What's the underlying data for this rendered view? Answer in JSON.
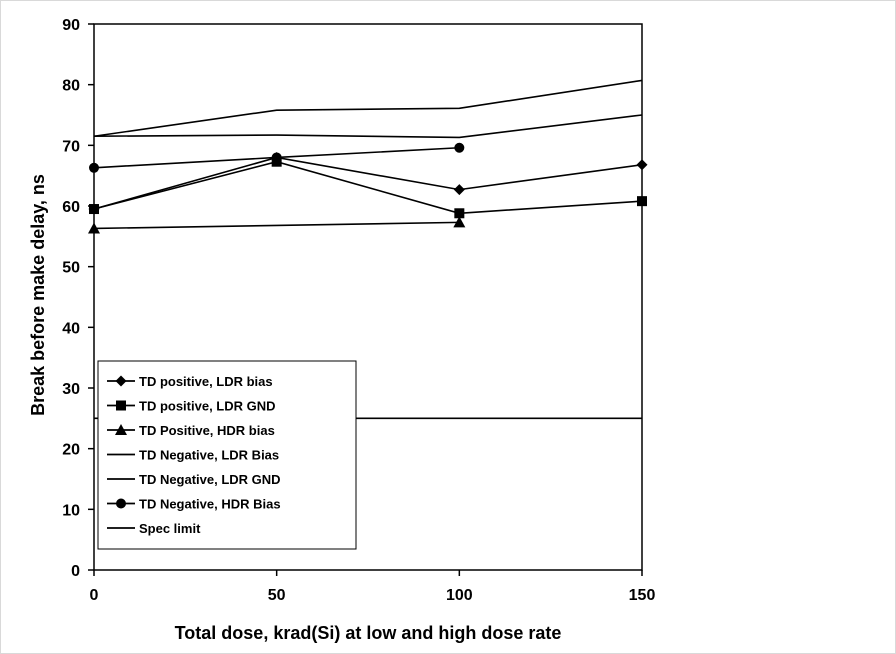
{
  "chart_data": {
    "type": "line",
    "title": "",
    "xlabel": "Total dose, krad(Si) at low and high dose rate",
    "ylabel": "Break before make delay, ns",
    "xlim": [
      0,
      150
    ],
    "ylim": [
      0,
      90
    ],
    "x_ticks": [
      0,
      50,
      100,
      150
    ],
    "y_ticks": [
      0,
      10,
      20,
      30,
      40,
      50,
      60,
      70,
      80,
      90
    ],
    "grid": false,
    "legend_position": "bottom-left",
    "series": [
      {
        "name": "TD positive, LDR bias",
        "marker": "diamond",
        "x": [
          0,
          50,
          100,
          150
        ],
        "values": [
          59.5,
          68.0,
          62.7,
          66.8
        ]
      },
      {
        "name": "TD positive, LDR GND",
        "marker": "square",
        "x": [
          0,
          50,
          100,
          150
        ],
        "values": [
          59.5,
          67.3,
          58.8,
          60.8
        ]
      },
      {
        "name": "TD Positive, HDR bias",
        "marker": "triangle",
        "x": [
          0,
          100
        ],
        "values": [
          56.3,
          57.3
        ]
      },
      {
        "name": "TD Negative, LDR Bias",
        "marker": "none",
        "x": [
          0,
          50,
          100,
          150
        ],
        "values": [
          71.5,
          75.8,
          76.1,
          80.7
        ]
      },
      {
        "name": "TD Negative, LDR GND",
        "marker": "none",
        "x": [
          0,
          50,
          100,
          150
        ],
        "values": [
          71.5,
          71.7,
          71.3,
          75.0
        ]
      },
      {
        "name": "TD Negative, HDR Bias",
        "marker": "circle",
        "x": [
          0,
          50,
          100
        ],
        "values": [
          66.3,
          68.0,
          69.6
        ]
      },
      {
        "name": "Spec limit",
        "marker": "none",
        "x": [
          0,
          150
        ],
        "values": [
          25,
          25
        ]
      }
    ],
    "colors": {
      "line": "#000000",
      "frame": "#d9d9d9"
    }
  }
}
